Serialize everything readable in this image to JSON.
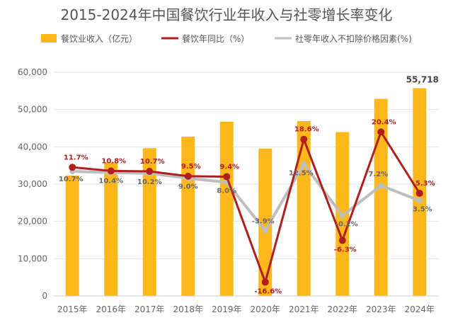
{
  "chart_data": {
    "type": "bar",
    "title": "2015-2024年中国餐饮行业年收入与社零增长率变化",
    "categories": [
      "2015年",
      "2016年",
      "2017年",
      "2018年",
      "2019年",
      "2020年",
      "2021年",
      "2022年",
      "2023年",
      "2024年"
    ],
    "ylim": [
      0,
      60000
    ],
    "yticks": [
      "0",
      "10,000",
      "20,000",
      "30,000",
      "40,000",
      "50,000",
      "60,000"
    ],
    "grid": true,
    "legend_position": "top",
    "colors": {
      "bar": "#FFB81C",
      "line1": "#B01E1E",
      "line2": "#BEBEBE"
    },
    "series": [
      {
        "name": "餐饮业收入（亿元）",
        "type": "bar",
        "values": [
          32310,
          35799,
          39644,
          42716,
          46721,
          39527,
          46895,
          43941,
          52890,
          55718
        ],
        "top_label": "55,718"
      },
      {
        "name": "餐饮年同比（%）",
        "type": "line",
        "values": [
          11.7,
          10.8,
          10.7,
          9.5,
          9.4,
          -16.6,
          18.6,
          -6.3,
          20.4,
          5.3
        ],
        "labels": [
          "11.7%",
          "10.8%",
          "10.7%",
          "9.5%",
          "9.4%",
          "-16.6%",
          "18.6%",
          "-6.3%",
          "20.4%",
          "5.3%"
        ]
      },
      {
        "name": "社零年收入不扣除价格因素(%)",
        "type": "line",
        "values": [
          10.7,
          10.4,
          10.2,
          9.0,
          8.0,
          -3.9,
          12.5,
          -0.2,
          7.2,
          3.5
        ],
        "labels": [
          "10.7%",
          "10.4%",
          "10.2%",
          "9.0%",
          "8.0%",
          "-3.9%",
          "12.5%",
          "-0.2%",
          "7.2%",
          "3.5%"
        ]
      }
    ]
  }
}
